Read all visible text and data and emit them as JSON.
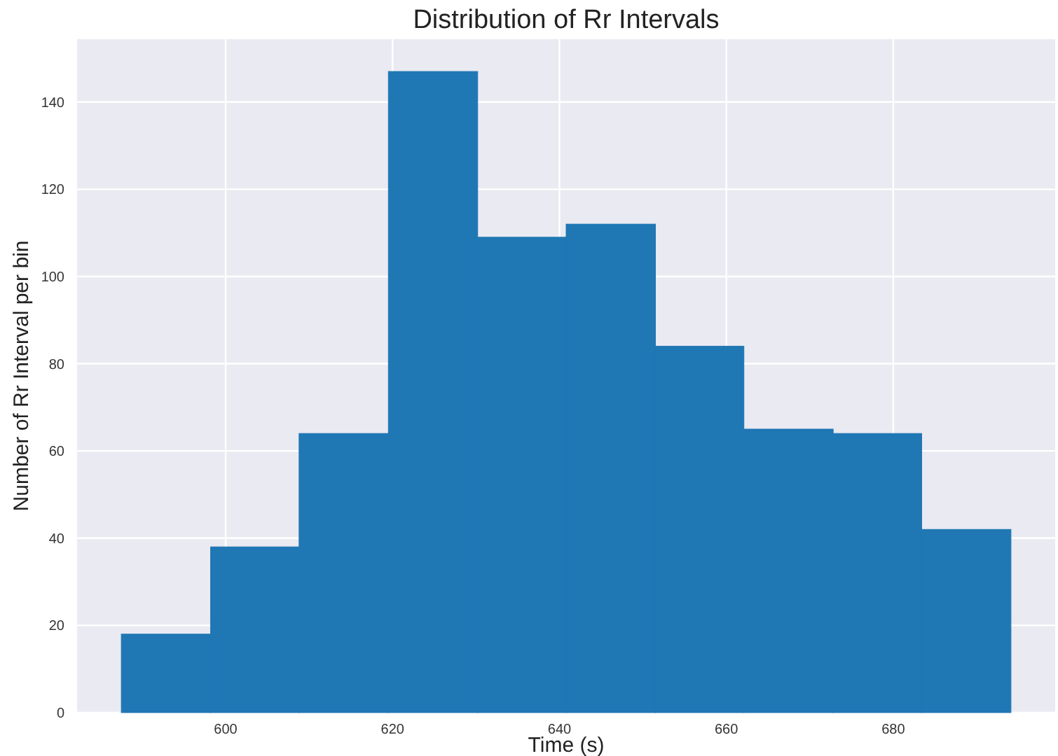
{
  "chart_data": {
    "type": "histogram",
    "title": "Distribution of Rr Intervals",
    "xlabel": "Time (s)",
    "ylabel": "Number of Rr Interval per bin",
    "bins": [
      587.5,
      598.2,
      608.8,
      619.5,
      630.2,
      640.8,
      651.5,
      662.1,
      672.8,
      683.4,
      694.1
    ],
    "values": [
      18,
      38,
      64,
      147,
      109,
      112,
      84,
      65,
      64,
      42
    ],
    "color": "#1f77b4",
    "xlim": [
      582.2,
      699.4
    ],
    "xticks": [
      600,
      620,
      640,
      660,
      680
    ],
    "ylim": [
      0,
      154.4
    ],
    "yticks": [
      0,
      20,
      40,
      60,
      80,
      100,
      120,
      140
    ],
    "grid": true
  }
}
